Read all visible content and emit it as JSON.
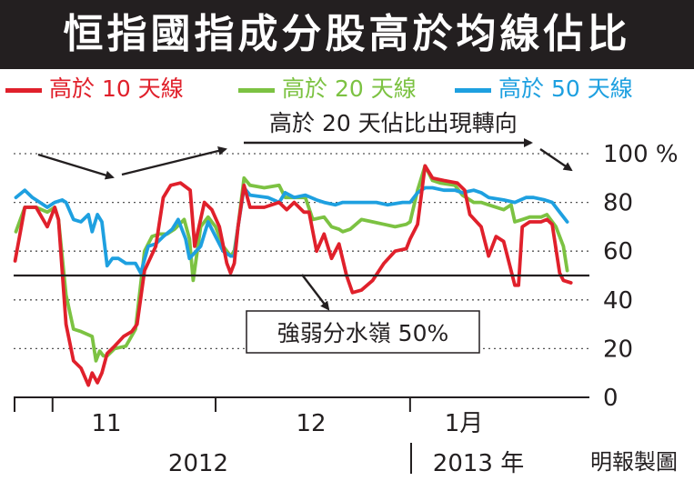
{
  "title": "恒指國指成分股高於均線佔比",
  "legend": [
    {
      "label": "高於 10 天線",
      "color": "#e0202b"
    },
    {
      "label": "高於 20 天線",
      "color": "#7cc242"
    },
    {
      "label": "高於 50 天線",
      "color": "#1ea0e0"
    }
  ],
  "annotations": {
    "trend_note": "高於 20 天佔比出現轉向",
    "watershed_box": "強弱分水嶺 50%"
  },
  "credit": "明報製圖",
  "chart_data": {
    "type": "line",
    "title": "恒指國指成分股高於均線佔比",
    "ylim": [
      0,
      100
    ],
    "yticks": [
      "0",
      "20",
      "40",
      "60",
      "80",
      "100 %"
    ],
    "ytick_values": [
      0,
      20,
      40,
      60,
      80,
      100
    ],
    "x_month_labels": [
      "11",
      "12",
      "1月"
    ],
    "x_year_labels": [
      "2012",
      "2013 年"
    ],
    "x_range": [
      0,
      76
    ],
    "x_month_starts": [
      5.2,
      27,
      53
    ],
    "reference_line": {
      "y": 50,
      "label": "強弱分水嶺 50%"
    },
    "grid": "dotted horizontal",
    "series": [
      {
        "name": "高於 10 天線",
        "color": "#e0202b",
        "points": [
          [
            0.2,
            56
          ],
          [
            1.5,
            78
          ],
          [
            3.0,
            78
          ],
          [
            4.5,
            70
          ],
          [
            5.5,
            78
          ],
          [
            6.0,
            73
          ],
          [
            7.0,
            30
          ],
          [
            8.0,
            15
          ],
          [
            9.0,
            12
          ],
          [
            10.0,
            5
          ],
          [
            10.5,
            10
          ],
          [
            11.2,
            6
          ],
          [
            11.8,
            10
          ],
          [
            12.5,
            18
          ],
          [
            13.5,
            21
          ],
          [
            14.7,
            25
          ],
          [
            15.8,
            27
          ],
          [
            16.5,
            30
          ],
          [
            17.5,
            52
          ],
          [
            19.0,
            62
          ],
          [
            20.0,
            82
          ],
          [
            21.0,
            87
          ],
          [
            22.3,
            88
          ],
          [
            23.6,
            85
          ],
          [
            24.2,
            62
          ],
          [
            25.5,
            80
          ],
          [
            26.5,
            77
          ],
          [
            27.5,
            70
          ],
          [
            28.5,
            55
          ],
          [
            29.0,
            51
          ],
          [
            29.5,
            55
          ],
          [
            30.0,
            70
          ],
          [
            30.8,
            87
          ],
          [
            31.6,
            78
          ],
          [
            33.5,
            78
          ],
          [
            35.5,
            80
          ],
          [
            36.5,
            77
          ],
          [
            37.5,
            80
          ],
          [
            38.8,
            76
          ],
          [
            39.5,
            76
          ],
          [
            40.5,
            60
          ],
          [
            41.5,
            67
          ],
          [
            42.5,
            57
          ],
          [
            43.5,
            63
          ],
          [
            44.5,
            50
          ],
          [
            45.3,
            43
          ],
          [
            46.5,
            44
          ],
          [
            48.0,
            48
          ],
          [
            49.5,
            55
          ],
          [
            51.0,
            60
          ],
          [
            52.5,
            61
          ],
          [
            53.0,
            65
          ],
          [
            54.0,
            71
          ],
          [
            55.0,
            95
          ],
          [
            56.0,
            90
          ],
          [
            57.5,
            89
          ],
          [
            59.3,
            88
          ],
          [
            60.3,
            85
          ],
          [
            61.0,
            75
          ],
          [
            62.5,
            70
          ],
          [
            63.5,
            58
          ],
          [
            64.5,
            66
          ],
          [
            65.5,
            64
          ],
          [
            67.0,
            46
          ],
          [
            67.5,
            46
          ],
          [
            68.0,
            70
          ],
          [
            69.0,
            72
          ],
          [
            70.5,
            72
          ],
          [
            71.3,
            73
          ],
          [
            72.0,
            71
          ],
          [
            73.0,
            51
          ],
          [
            73.5,
            48
          ],
          [
            74.5,
            47
          ]
        ]
      },
      {
        "name": "高於 20 天線",
        "color": "#7cc242",
        "points": [
          [
            0.3,
            68
          ],
          [
            1.5,
            78
          ],
          [
            3.0,
            78
          ],
          [
            4.5,
            76
          ],
          [
            5.5,
            78
          ],
          [
            6.0,
            73
          ],
          [
            7.0,
            42
          ],
          [
            8.0,
            28
          ],
          [
            9.0,
            27
          ],
          [
            10.5,
            25
          ],
          [
            11.0,
            15
          ],
          [
            11.5,
            19
          ],
          [
            12.0,
            17
          ],
          [
            12.5,
            17
          ],
          [
            13.5,
            20
          ],
          [
            15.0,
            21
          ],
          [
            16.3,
            28
          ],
          [
            17.5,
            60
          ],
          [
            18.5,
            66
          ],
          [
            19.5,
            67
          ],
          [
            20.5,
            67
          ],
          [
            21.5,
            69
          ],
          [
            22.8,
            73
          ],
          [
            23.5,
            65
          ],
          [
            24.0,
            48
          ],
          [
            25.0,
            70
          ],
          [
            26.0,
            74
          ],
          [
            27.0,
            70
          ],
          [
            28.0,
            62
          ],
          [
            29.0,
            58
          ],
          [
            29.5,
            60
          ],
          [
            30.0,
            70
          ],
          [
            30.8,
            90
          ],
          [
            31.6,
            87
          ],
          [
            33.5,
            86
          ],
          [
            35.5,
            87
          ],
          [
            36.3,
            82
          ],
          [
            37.5,
            82
          ],
          [
            39.0,
            82
          ],
          [
            40.0,
            73
          ],
          [
            41.5,
            74
          ],
          [
            42.5,
            70
          ],
          [
            43.5,
            69
          ],
          [
            44.0,
            68
          ],
          [
            45.0,
            69
          ],
          [
            46.5,
            73
          ],
          [
            48.0,
            72
          ],
          [
            49.5,
            71
          ],
          [
            51.0,
            70
          ],
          [
            52.5,
            71
          ],
          [
            53.0,
            72
          ],
          [
            54.0,
            85
          ],
          [
            55.0,
            95
          ],
          [
            56.0,
            89
          ],
          [
            57.0,
            88
          ],
          [
            59.0,
            87
          ],
          [
            60.0,
            83
          ],
          [
            61.5,
            80
          ],
          [
            62.5,
            80
          ],
          [
            63.5,
            79
          ],
          [
            65.5,
            77
          ],
          [
            66.5,
            79
          ],
          [
            67.0,
            72
          ],
          [
            68.0,
            73
          ],
          [
            69.0,
            74
          ],
          [
            70.5,
            74
          ],
          [
            71.3,
            75
          ],
          [
            72.5,
            70
          ],
          [
            73.5,
            62
          ],
          [
            74.0,
            52
          ]
        ]
      },
      {
        "name": "高於 50 天線",
        "color": "#1ea0e0",
        "points": [
          [
            0.3,
            82
          ],
          [
            1.5,
            85
          ],
          [
            2.5,
            82
          ],
          [
            3.5,
            80
          ],
          [
            4.5,
            78
          ],
          [
            5.5,
            80
          ],
          [
            6.5,
            81
          ],
          [
            7.0,
            80
          ],
          [
            8.0,
            73
          ],
          [
            9.0,
            72
          ],
          [
            10.0,
            75
          ],
          [
            10.5,
            68
          ],
          [
            11.2,
            75
          ],
          [
            11.8,
            72
          ],
          [
            12.5,
            54
          ],
          [
            13.2,
            57
          ],
          [
            14.0,
            57
          ],
          [
            15.0,
            55
          ],
          [
            16.3,
            55
          ],
          [
            17.0,
            51
          ],
          [
            18.0,
            62
          ],
          [
            19.0,
            63
          ],
          [
            20.0,
            66
          ],
          [
            21.2,
            69
          ],
          [
            22.0,
            73
          ],
          [
            23.0,
            65
          ],
          [
            23.5,
            57
          ],
          [
            25.0,
            62
          ],
          [
            26.0,
            72
          ],
          [
            27.0,
            66
          ],
          [
            28.0,
            60
          ],
          [
            29.0,
            58
          ],
          [
            29.5,
            58
          ],
          [
            30.0,
            70
          ],
          [
            30.8,
            86
          ],
          [
            31.6,
            83
          ],
          [
            34.0,
            82
          ],
          [
            35.5,
            80
          ],
          [
            36.3,
            84
          ],
          [
            37.5,
            82
          ],
          [
            39.0,
            83
          ],
          [
            40.5,
            81
          ],
          [
            41.5,
            80
          ],
          [
            43.0,
            79
          ],
          [
            44.0,
            80
          ],
          [
            45.5,
            80
          ],
          [
            47.0,
            80
          ],
          [
            48.5,
            80
          ],
          [
            50.0,
            79
          ],
          [
            52.0,
            80
          ],
          [
            53.0,
            80
          ],
          [
            54.0,
            84
          ],
          [
            55.0,
            86
          ],
          [
            56.0,
            86
          ],
          [
            57.5,
            85
          ],
          [
            59.0,
            85
          ],
          [
            60.0,
            84
          ],
          [
            61.5,
            85
          ],
          [
            62.5,
            84
          ],
          [
            63.5,
            82
          ],
          [
            65.5,
            81
          ],
          [
            67.0,
            80
          ],
          [
            68.5,
            82
          ],
          [
            69.5,
            82
          ],
          [
            71.0,
            81
          ],
          [
            72.0,
            80
          ],
          [
            73.0,
            76
          ],
          [
            74.0,
            72
          ]
        ]
      }
    ]
  }
}
